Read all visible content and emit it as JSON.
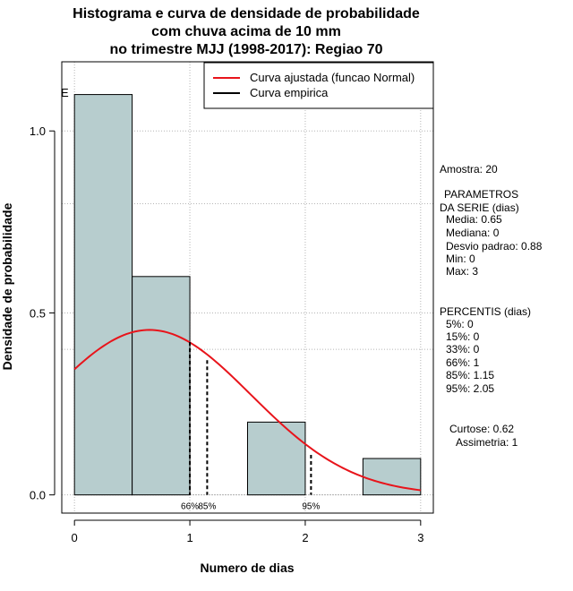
{
  "chart_data": {
    "type": "bar",
    "title_lines": [
      "Histograma e curva de densidade de probabilidade",
      "com chuva acima de 10 mm",
      "no trimestre MJJ (1998-2017): Regiao 70"
    ],
    "xlabel": "Numero de dias",
    "ylabel": "Densidade de probabilidade",
    "xlim": [
      -0.11,
      3.11
    ],
    "ylim": [
      -0.05,
      1.19
    ],
    "xticks": [
      "0",
      "1",
      "2",
      "3"
    ],
    "yticks": [
      "0.0",
      "0.5",
      "1.0"
    ],
    "bins": [
      {
        "from": 0.0,
        "to": 0.5,
        "density": 1.1
      },
      {
        "from": 0.5,
        "to": 1.0,
        "density": 0.6
      },
      {
        "from": 1.0,
        "to": 1.5,
        "density": 0.0
      },
      {
        "from": 1.5,
        "to": 2.0,
        "density": 0.2
      },
      {
        "from": 2.0,
        "to": 2.5,
        "density": 0.0
      },
      {
        "from": 2.5,
        "to": 3.0,
        "density": 0.1
      }
    ],
    "bar_color": "#b7cdce",
    "normal_curve": {
      "mean": 0.65,
      "sd": 0.88,
      "color": "#e8141b"
    },
    "percentile_lines": [
      {
        "x": 1.0,
        "height": 0.42,
        "label": "66%"
      },
      {
        "x": 1.15,
        "height": 0.37,
        "label": "85%"
      },
      {
        "x": 2.05,
        "height": 0.11,
        "label": "95%"
      }
    ],
    "legend": [
      {
        "label": "Curva ajustada (funcao Normal)",
        "color": "#e8141b"
      },
      {
        "label": "Curva empirica",
        "color": "#000000"
      }
    ],
    "y_marker_glyph": "E"
  },
  "stats": {
    "sample": "Amostra: 20",
    "params_title_1": "PARAMETROS",
    "params_title_2": "DA SERIE (dias)",
    "params": [
      "Media: 0.65",
      "Mediana: 0",
      "Desvio padrao: 0.88",
      "Min: 0",
      "Max: 3"
    ],
    "percentis_title": "PERCENTIS (dias)",
    "percentis": [
      "5%: 0",
      "15%: 0",
      "33%: 0",
      "66%: 1",
      "85%: 1.15",
      "95%: 2.05"
    ],
    "curtose": "Curtose: 0.62",
    "assimetria": "Assimetria: 1"
  }
}
